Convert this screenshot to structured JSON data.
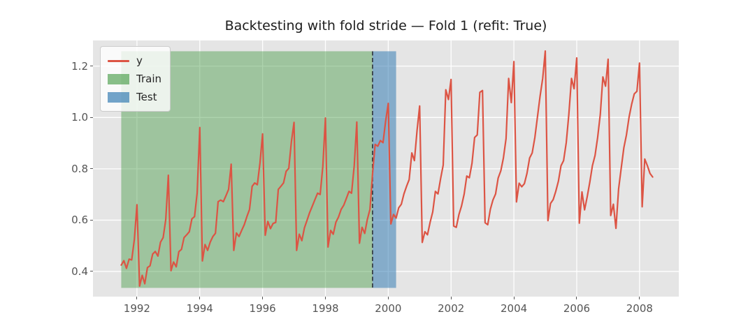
{
  "title": "Backtesting with fold stride — Fold 1 (refit: True)",
  "legend": {
    "series_label": "y",
    "train_label": "Train",
    "test_label": "Test"
  },
  "colors": {
    "line": "#dc5444",
    "train_fill": "#3c963c",
    "train_alpha": 0.42,
    "test_fill": "#377db4",
    "test_alpha": 0.55,
    "plot_bg": "#e5e5e5",
    "grid": "#ffffff",
    "split_line": "#333940",
    "tick_label": "#555555",
    "title_color": "#1c1c1c"
  },
  "chart_data": {
    "type": "line",
    "title": "Backtesting with fold stride — Fold 1 (refit: True)",
    "series_name": "y",
    "legend_position": "upper left",
    "grid": true,
    "xlim": [
      1990.6,
      2009.25
    ],
    "ylim": [
      0.302,
      1.3
    ],
    "x_tick_values": [
      1992,
      1994,
      1996,
      1998,
      2000,
      2002,
      2004,
      2006,
      2008
    ],
    "x_tick_labels": [
      "1992",
      "1994",
      "1996",
      "1998",
      "2000",
      "2002",
      "2004",
      "2006",
      "2008"
    ],
    "y_tick_values": [
      0.4,
      0.6,
      0.8,
      1.0,
      1.2
    ],
    "y_tick_labels": [
      "0.4",
      "0.6",
      "0.8",
      "1.0",
      "1.2"
    ],
    "x_start": 1991.5,
    "x_step_years": 0.0833333,
    "y": [
      0.425,
      0.442,
      0.412,
      0.448,
      0.445,
      0.525,
      0.66,
      0.343,
      0.385,
      0.352,
      0.415,
      0.422,
      0.468,
      0.478,
      0.46,
      0.514,
      0.532,
      0.602,
      0.775,
      0.403,
      0.437,
      0.418,
      0.477,
      0.486,
      0.532,
      0.543,
      0.555,
      0.605,
      0.614,
      0.705,
      0.961,
      0.441,
      0.505,
      0.482,
      0.514,
      0.536,
      0.549,
      0.672,
      0.678,
      0.672,
      0.695,
      0.72,
      0.818,
      0.482,
      0.55,
      0.536,
      0.56,
      0.582,
      0.614,
      0.641,
      0.732,
      0.745,
      0.738,
      0.823,
      0.936,
      0.541,
      0.595,
      0.567,
      0.587,
      0.591,
      0.72,
      0.732,
      0.745,
      0.79,
      0.802,
      0.905,
      0.981,
      0.482,
      0.545,
      0.52,
      0.57,
      0.6,
      0.63,
      0.655,
      0.68,
      0.705,
      0.7,
      0.81,
      0.998,
      0.495,
      0.56,
      0.545,
      0.592,
      0.612,
      0.642,
      0.658,
      0.685,
      0.712,
      0.705,
      0.812,
      0.982,
      0.51,
      0.572,
      0.548,
      0.602,
      0.642,
      0.78,
      0.895,
      0.888,
      0.91,
      0.902,
      0.985,
      1.055,
      0.585,
      0.622,
      0.608,
      0.648,
      0.662,
      0.702,
      0.732,
      0.758,
      0.862,
      0.832,
      0.95,
      1.045,
      0.513,
      0.555,
      0.543,
      0.592,
      0.632,
      0.712,
      0.702,
      0.762,
      0.815,
      1.108,
      1.07,
      1.148,
      0.577,
      0.572,
      0.622,
      0.655,
      0.702,
      0.772,
      0.765,
      0.822,
      0.922,
      0.932,
      1.098,
      1.105,
      0.59,
      0.582,
      0.642,
      0.678,
      0.702,
      0.764,
      0.792,
      0.842,
      0.918,
      1.152,
      1.058,
      1.218,
      0.671,
      0.744,
      0.73,
      0.742,
      0.782,
      0.842,
      0.862,
      0.922,
      1.002,
      1.082,
      1.152,
      1.259,
      0.598,
      0.665,
      0.68,
      0.712,
      0.752,
      0.812,
      0.832,
      0.902,
      1.012,
      1.152,
      1.112,
      1.232,
      0.588,
      0.71,
      0.64,
      0.69,
      0.748,
      0.812,
      0.852,
      0.922,
      1.012,
      1.158,
      1.122,
      1.227,
      0.618,
      0.662,
      0.568,
      0.722,
      0.802,
      0.882,
      0.932,
      1.002,
      1.052,
      1.092,
      1.102,
      1.212,
      0.652,
      0.838,
      0.812,
      0.782,
      0.768
    ],
    "regions": {
      "train": {
        "x0": 1991.5,
        "x1": 1999.5,
        "y0": 0.336,
        "y1": 1.258
      },
      "test": {
        "x0": 1999.5,
        "x1": 2000.25,
        "y0": 0.336,
        "y1": 1.258
      }
    },
    "split_line_x": 1999.5
  }
}
